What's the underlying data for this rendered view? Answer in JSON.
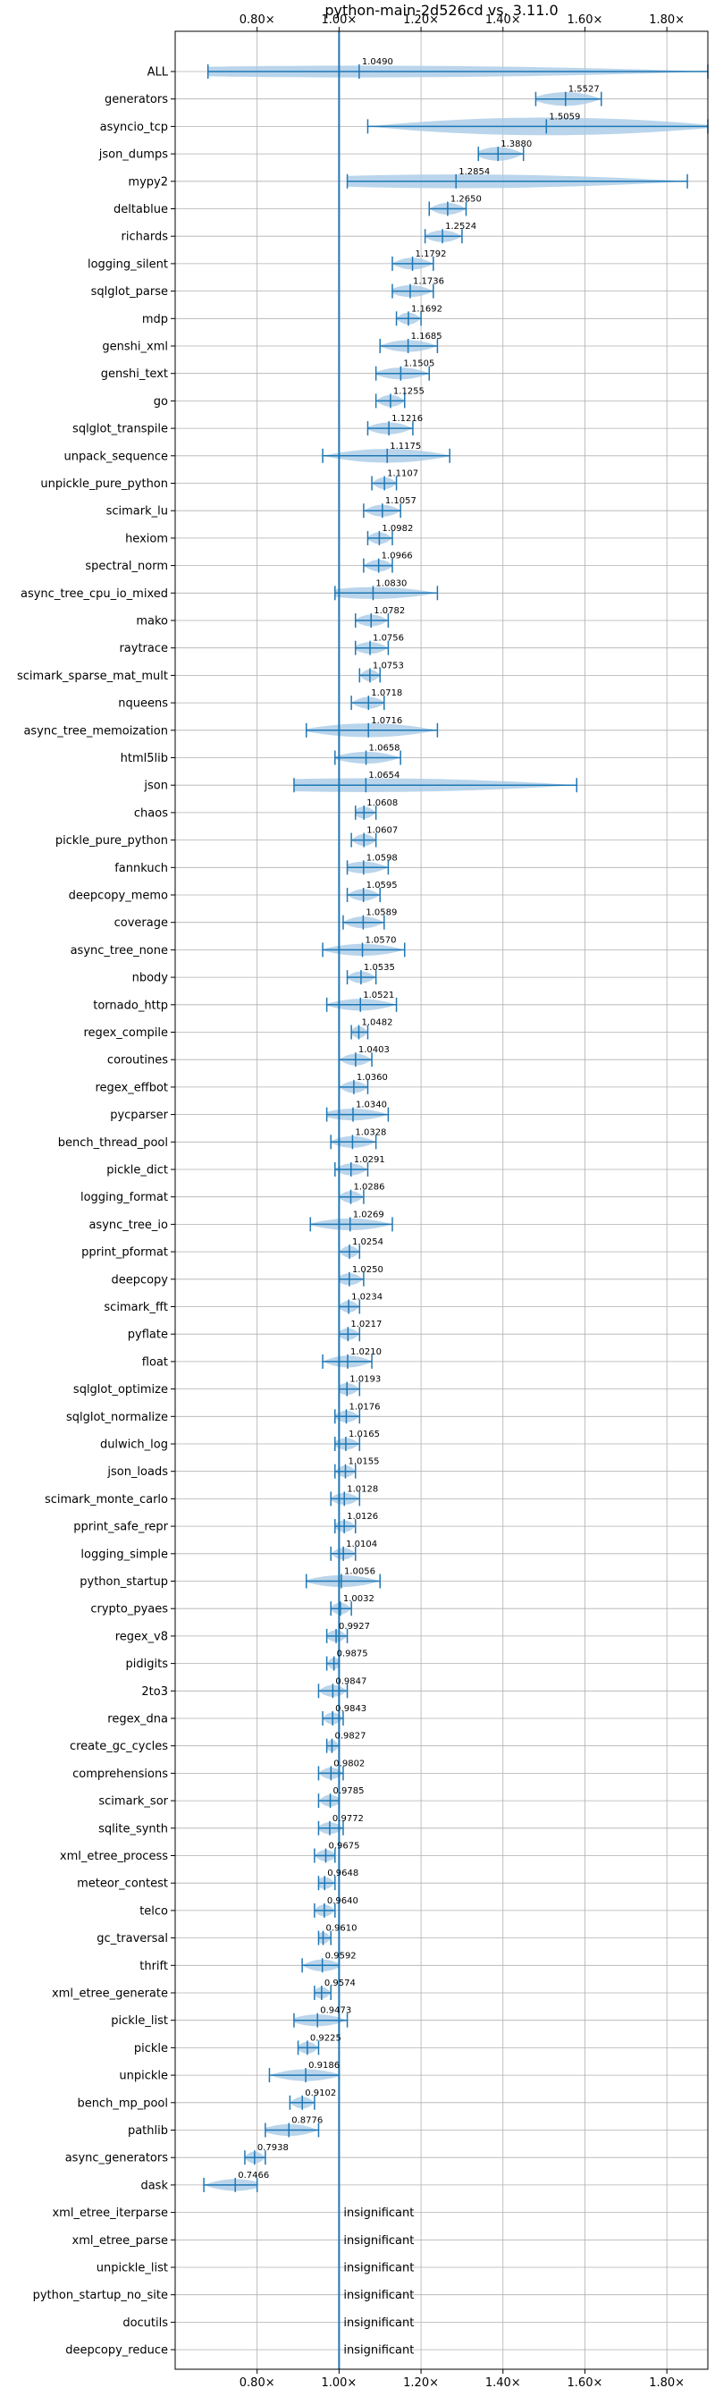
{
  "chart_data": {
    "type": "violin",
    "title": "python-main-2d526cd vs. 3.11.0",
    "xlim": [
      0.6,
      1.9
    ],
    "xticks": [
      0.8,
      1.0,
      1.2,
      1.4,
      1.6,
      1.8
    ],
    "xtick_labels": [
      "0.80×",
      "1.00×",
      "1.20×",
      "1.40×",
      "1.60×",
      "1.80×"
    ],
    "reference_line": 1.0,
    "grid": true,
    "colors": {
      "violin": "#a9cbe6",
      "stats": "#1f77b4",
      "axis": "#000000",
      "grid": "#b0b0b0"
    },
    "benchmarks": [
      {
        "name": "ALL",
        "value": 1.049,
        "label": "1.0490",
        "min": 0.68,
        "max": 1.9,
        "width": 0.6
      },
      {
        "name": "generators",
        "value": 1.5527,
        "label": "1.5527",
        "min": 1.48,
        "max": 1.64,
        "width": 0.7
      },
      {
        "name": "asyncio_tcp",
        "value": 1.5059,
        "label": "1.5059",
        "min": 1.07,
        "max": 1.9,
        "width": 0.9
      },
      {
        "name": "json_dumps",
        "value": 1.388,
        "label": "1.3880",
        "min": 1.34,
        "max": 1.45,
        "width": 0.7
      },
      {
        "name": "mypy2",
        "value": 1.2854,
        "label": "1.2854",
        "min": 1.02,
        "max": 1.85,
        "width": 0.7
      },
      {
        "name": "deltablue",
        "value": 1.265,
        "label": "1.2650",
        "min": 1.22,
        "max": 1.31,
        "width": 0.6
      },
      {
        "name": "richards",
        "value": 1.2524,
        "label": "1.2524",
        "min": 1.21,
        "max": 1.3,
        "width": 0.6
      },
      {
        "name": "logging_silent",
        "value": 1.1792,
        "label": "1.1792",
        "min": 1.13,
        "max": 1.23,
        "width": 0.6
      },
      {
        "name": "sqlglot_parse",
        "value": 1.1736,
        "label": "1.1736",
        "min": 1.13,
        "max": 1.23,
        "width": 0.6
      },
      {
        "name": "mdp",
        "value": 1.1692,
        "label": "1.1692",
        "min": 1.14,
        "max": 1.2,
        "width": 0.6
      },
      {
        "name": "genshi_xml",
        "value": 1.1685,
        "label": "1.1685",
        "min": 1.1,
        "max": 1.24,
        "width": 0.6
      },
      {
        "name": "genshi_text",
        "value": 1.1505,
        "label": "1.1505",
        "min": 1.09,
        "max": 1.22,
        "width": 0.6
      },
      {
        "name": "go",
        "value": 1.1255,
        "label": "1.1255",
        "min": 1.09,
        "max": 1.16,
        "width": 0.6
      },
      {
        "name": "sqlglot_transpile",
        "value": 1.1216,
        "label": "1.1216",
        "min": 1.07,
        "max": 1.18,
        "width": 0.6
      },
      {
        "name": "unpack_sequence",
        "value": 1.1175,
        "label": "1.1175",
        "min": 0.96,
        "max": 1.27,
        "width": 0.7
      },
      {
        "name": "unpickle_pure_python",
        "value": 1.1107,
        "label": "1.1107",
        "min": 1.08,
        "max": 1.14,
        "width": 0.6
      },
      {
        "name": "scimark_lu",
        "value": 1.1057,
        "label": "1.1057",
        "min": 1.06,
        "max": 1.15,
        "width": 0.6
      },
      {
        "name": "hexiom",
        "value": 1.0982,
        "label": "1.0982",
        "min": 1.07,
        "max": 1.13,
        "width": 0.6
      },
      {
        "name": "spectral_norm",
        "value": 1.0966,
        "label": "1.0966",
        "min": 1.06,
        "max": 1.13,
        "width": 0.6
      },
      {
        "name": "async_tree_cpu_io_mixed",
        "value": 1.083,
        "label": "1.0830",
        "min": 0.99,
        "max": 1.24,
        "width": 0.6
      },
      {
        "name": "mako",
        "value": 1.0782,
        "label": "1.0782",
        "min": 1.04,
        "max": 1.12,
        "width": 0.6
      },
      {
        "name": "raytrace",
        "value": 1.0756,
        "label": "1.0756",
        "min": 1.04,
        "max": 1.12,
        "width": 0.6
      },
      {
        "name": "scimark_sparse_mat_mult",
        "value": 1.0753,
        "label": "1.0753",
        "min": 1.05,
        "max": 1.1,
        "width": 0.6
      },
      {
        "name": "nqueens",
        "value": 1.0718,
        "label": "1.0718",
        "min": 1.03,
        "max": 1.11,
        "width": 0.6
      },
      {
        "name": "async_tree_memoization",
        "value": 1.0716,
        "label": "1.0716",
        "min": 0.92,
        "max": 1.24,
        "width": 0.7
      },
      {
        "name": "html5lib",
        "value": 1.0658,
        "label": "1.0658",
        "min": 0.99,
        "max": 1.15,
        "width": 0.6
      },
      {
        "name": "json",
        "value": 1.0654,
        "label": "1.0654",
        "min": 0.89,
        "max": 1.58,
        "width": 0.7
      },
      {
        "name": "chaos",
        "value": 1.0608,
        "label": "1.0608",
        "min": 1.04,
        "max": 1.09,
        "width": 0.6
      },
      {
        "name": "pickle_pure_python",
        "value": 1.0607,
        "label": "1.0607",
        "min": 1.03,
        "max": 1.09,
        "width": 0.6
      },
      {
        "name": "fannkuch",
        "value": 1.0598,
        "label": "1.0598",
        "min": 1.02,
        "max": 1.12,
        "width": 0.6
      },
      {
        "name": "deepcopy_memo",
        "value": 1.0595,
        "label": "1.0595",
        "min": 1.02,
        "max": 1.1,
        "width": 0.6
      },
      {
        "name": "coverage",
        "value": 1.0589,
        "label": "1.0589",
        "min": 1.01,
        "max": 1.11,
        "width": 0.6
      },
      {
        "name": "async_tree_none",
        "value": 1.057,
        "label": "1.0570",
        "min": 0.96,
        "max": 1.16,
        "width": 0.6
      },
      {
        "name": "nbody",
        "value": 1.0535,
        "label": "1.0535",
        "min": 1.02,
        "max": 1.09,
        "width": 0.6
      },
      {
        "name": "tornado_http",
        "value": 1.0521,
        "label": "1.0521",
        "min": 0.97,
        "max": 1.14,
        "width": 0.6
      },
      {
        "name": "regex_compile",
        "value": 1.0482,
        "label": "1.0482",
        "min": 1.03,
        "max": 1.07,
        "width": 0.6
      },
      {
        "name": "coroutines",
        "value": 1.0403,
        "label": "1.0403",
        "min": 1.0,
        "max": 1.08,
        "width": 0.6
      },
      {
        "name": "regex_effbot",
        "value": 1.036,
        "label": "1.0360",
        "min": 1.0,
        "max": 1.07,
        "width": 0.6
      },
      {
        "name": "pycparser",
        "value": 1.034,
        "label": "1.0340",
        "min": 0.97,
        "max": 1.12,
        "width": 0.6
      },
      {
        "name": "bench_thread_pool",
        "value": 1.0328,
        "label": "1.0328",
        "min": 0.98,
        "max": 1.09,
        "width": 0.6
      },
      {
        "name": "pickle_dict",
        "value": 1.0291,
        "label": "1.0291",
        "min": 0.99,
        "max": 1.07,
        "width": 0.6
      },
      {
        "name": "logging_format",
        "value": 1.0286,
        "label": "1.0286",
        "min": 1.0,
        "max": 1.06,
        "width": 0.6
      },
      {
        "name": "async_tree_io",
        "value": 1.0269,
        "label": "1.0269",
        "min": 0.93,
        "max": 1.13,
        "width": 0.6
      },
      {
        "name": "pprint_pformat",
        "value": 1.0254,
        "label": "1.0254",
        "min": 1.0,
        "max": 1.05,
        "width": 0.6
      },
      {
        "name": "deepcopy",
        "value": 1.025,
        "label": "1.0250",
        "min": 1.0,
        "max": 1.06,
        "width": 0.6
      },
      {
        "name": "scimark_fft",
        "value": 1.0234,
        "label": "1.0234",
        "min": 1.0,
        "max": 1.05,
        "width": 0.6
      },
      {
        "name": "pyflate",
        "value": 1.0217,
        "label": "1.0217",
        "min": 1.0,
        "max": 1.05,
        "width": 0.6
      },
      {
        "name": "float",
        "value": 1.021,
        "label": "1.0210",
        "min": 0.96,
        "max": 1.08,
        "width": 0.6
      },
      {
        "name": "sqlglot_optimize",
        "value": 1.0193,
        "label": "1.0193",
        "min": 1.0,
        "max": 1.05,
        "width": 0.6
      },
      {
        "name": "sqlglot_normalize",
        "value": 1.0176,
        "label": "1.0176",
        "min": 0.99,
        "max": 1.05,
        "width": 0.6
      },
      {
        "name": "dulwich_log",
        "value": 1.0165,
        "label": "1.0165",
        "min": 0.99,
        "max": 1.05,
        "width": 0.6
      },
      {
        "name": "json_loads",
        "value": 1.0155,
        "label": "1.0155",
        "min": 0.99,
        "max": 1.04,
        "width": 0.6
      },
      {
        "name": "scimark_monte_carlo",
        "value": 1.0128,
        "label": "1.0128",
        "min": 0.98,
        "max": 1.05,
        "width": 0.6
      },
      {
        "name": "pprint_safe_repr",
        "value": 1.0126,
        "label": "1.0126",
        "min": 0.99,
        "max": 1.04,
        "width": 0.6
      },
      {
        "name": "logging_simple",
        "value": 1.0104,
        "label": "1.0104",
        "min": 0.98,
        "max": 1.04,
        "width": 0.6
      },
      {
        "name": "python_startup",
        "value": 1.0056,
        "label": "1.0056",
        "min": 0.92,
        "max": 1.1,
        "width": 0.6
      },
      {
        "name": "crypto_pyaes",
        "value": 1.0032,
        "label": "1.0032",
        "min": 0.98,
        "max": 1.03,
        "width": 0.6
      },
      {
        "name": "regex_v8",
        "value": 0.9927,
        "label": "0.9927",
        "min": 0.97,
        "max": 1.02,
        "width": 0.6
      },
      {
        "name": "pidigits",
        "value": 0.9875,
        "label": "0.9875",
        "min": 0.97,
        "max": 1.0,
        "width": 0.6
      },
      {
        "name": "2to3",
        "value": 0.9847,
        "label": "0.9847",
        "min": 0.95,
        "max": 1.02,
        "width": 0.6
      },
      {
        "name": "regex_dna",
        "value": 0.9843,
        "label": "0.9843",
        "min": 0.96,
        "max": 1.01,
        "width": 0.6
      },
      {
        "name": "create_gc_cycles",
        "value": 0.9827,
        "label": "0.9827",
        "min": 0.97,
        "max": 1.0,
        "width": 0.6
      },
      {
        "name": "comprehensions",
        "value": 0.9802,
        "label": "0.9802",
        "min": 0.95,
        "max": 1.01,
        "width": 0.6
      },
      {
        "name": "scimark_sor",
        "value": 0.9785,
        "label": "0.9785",
        "min": 0.95,
        "max": 1.0,
        "width": 0.6
      },
      {
        "name": "sqlite_synth",
        "value": 0.9772,
        "label": "0.9772",
        "min": 0.95,
        "max": 1.01,
        "width": 0.6
      },
      {
        "name": "xml_etree_process",
        "value": 0.9675,
        "label": "0.9675",
        "min": 0.94,
        "max": 0.99,
        "width": 0.6
      },
      {
        "name": "meteor_contest",
        "value": 0.9648,
        "label": "0.9648",
        "min": 0.95,
        "max": 0.99,
        "width": 0.6
      },
      {
        "name": "telco",
        "value": 0.964,
        "label": "0.9640",
        "min": 0.94,
        "max": 0.99,
        "width": 0.6
      },
      {
        "name": "gc_traversal",
        "value": 0.961,
        "label": "0.9610",
        "min": 0.95,
        "max": 0.98,
        "width": 0.6
      },
      {
        "name": "thrift",
        "value": 0.9592,
        "label": "0.9592",
        "min": 0.91,
        "max": 1.0,
        "width": 0.6
      },
      {
        "name": "xml_etree_generate",
        "value": 0.9574,
        "label": "0.9574",
        "min": 0.94,
        "max": 0.98,
        "width": 0.6
      },
      {
        "name": "pickle_list",
        "value": 0.9473,
        "label": "0.9473",
        "min": 0.89,
        "max": 1.02,
        "width": 0.6
      },
      {
        "name": "pickle",
        "value": 0.9225,
        "label": "0.9225",
        "min": 0.9,
        "max": 0.95,
        "width": 0.6
      },
      {
        "name": "unpickle",
        "value": 0.9186,
        "label": "0.9186",
        "min": 0.83,
        "max": 1.0,
        "width": 0.6
      },
      {
        "name": "bench_mp_pool",
        "value": 0.9102,
        "label": "0.9102",
        "min": 0.88,
        "max": 0.94,
        "width": 0.6
      },
      {
        "name": "pathlib",
        "value": 0.8776,
        "label": "0.8776",
        "min": 0.82,
        "max": 0.95,
        "width": 0.6
      },
      {
        "name": "async_generators",
        "value": 0.7938,
        "label": "0.7938",
        "min": 0.77,
        "max": 0.82,
        "width": 0.6
      },
      {
        "name": "dask",
        "value": 0.7466,
        "label": "0.7466",
        "min": 0.67,
        "max": 0.8,
        "width": 0.6
      }
    ],
    "insignificant": [
      "xml_etree_iterparse",
      "xml_etree_parse",
      "unpickle_list",
      "python_startup_no_site",
      "docutils",
      "deepcopy_reduce"
    ],
    "insignificant_label": "insignificant"
  }
}
